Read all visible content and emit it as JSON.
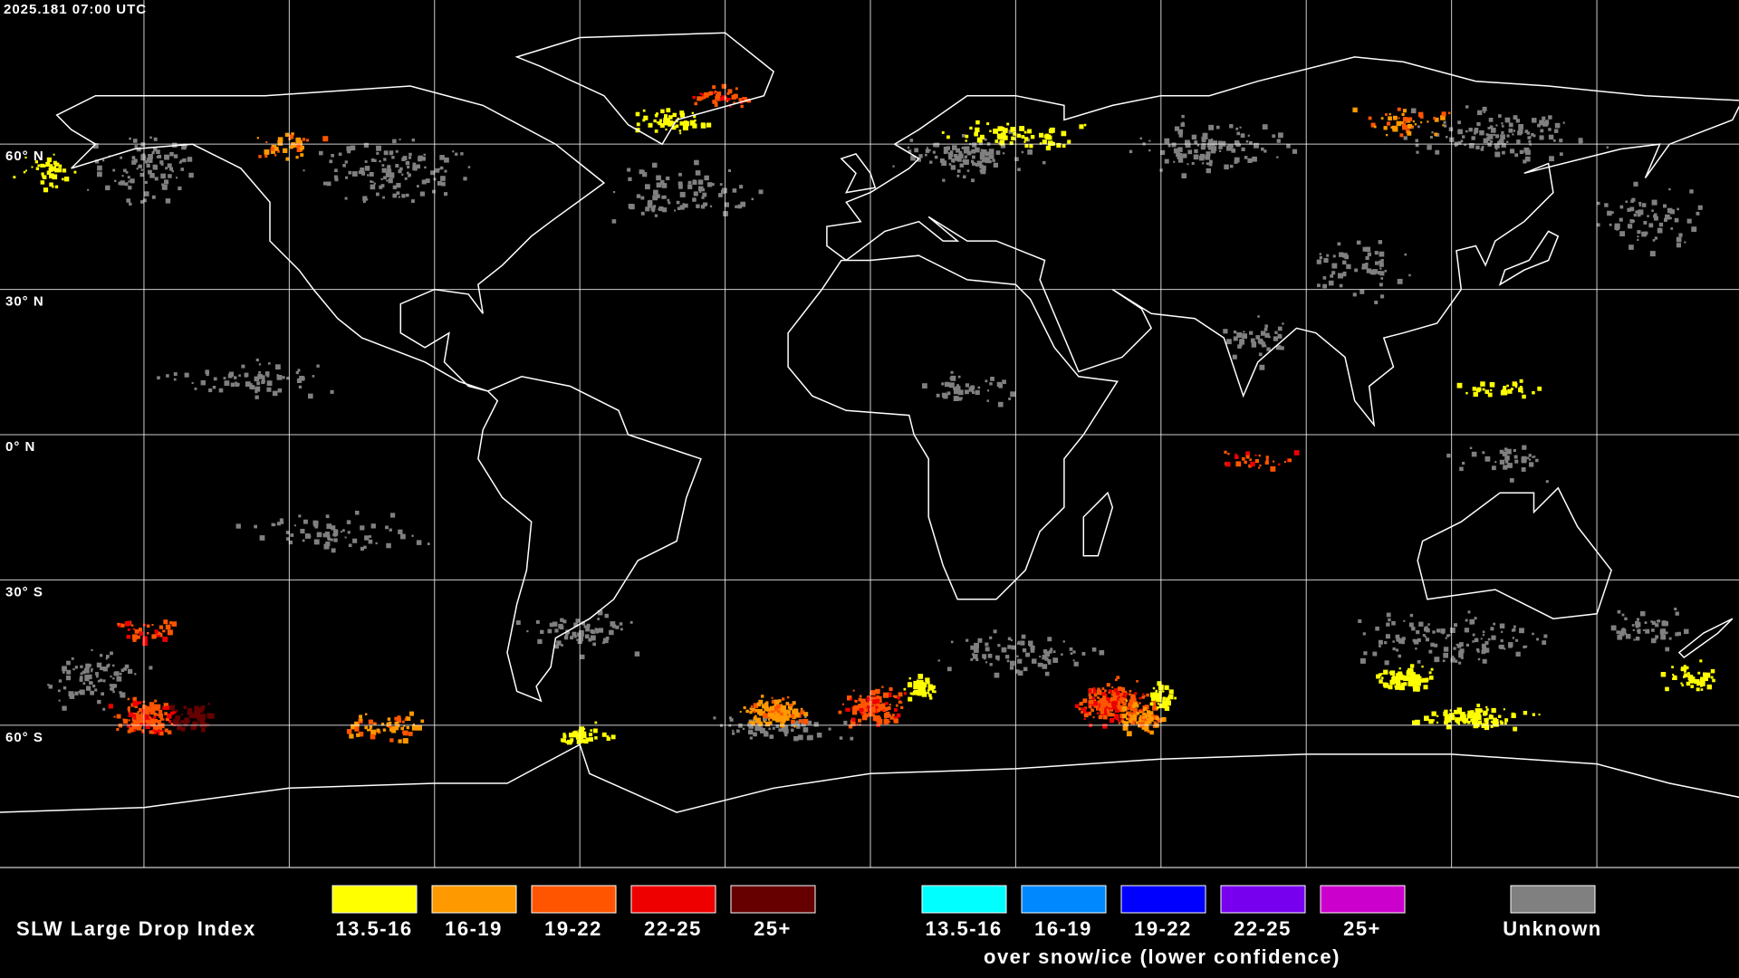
{
  "header": {
    "timestamp": "2025.181 07:00 UTC"
  },
  "map": {
    "lat_labels": [
      "60° N",
      "30° N",
      "0° N",
      "30° S",
      "60° S"
    ]
  },
  "legend": {
    "title": "SLW Large Drop Index",
    "primary": [
      {
        "label": "13.5-16",
        "color": "#ffff00"
      },
      {
        "label": "16-19",
        "color": "#ff9900"
      },
      {
        "label": "19-22",
        "color": "#ff5500"
      },
      {
        "label": "22-25",
        "color": "#ee0000"
      },
      {
        "label": "25+",
        "color": "#660000"
      }
    ],
    "snow_ice": [
      {
        "label": "13.5-16",
        "color": "#00ffff"
      },
      {
        "label": "16-19",
        "color": "#0088ff"
      },
      {
        "label": "19-22",
        "color": "#0000ff"
      },
      {
        "label": "22-25",
        "color": "#7700ee"
      },
      {
        "label": "25+",
        "color": "#cc00cc"
      }
    ],
    "snow_ice_caption": "over snow/ice (lower confidence)",
    "unknown": {
      "label": "Unknown",
      "color": "#808080"
    }
  }
}
